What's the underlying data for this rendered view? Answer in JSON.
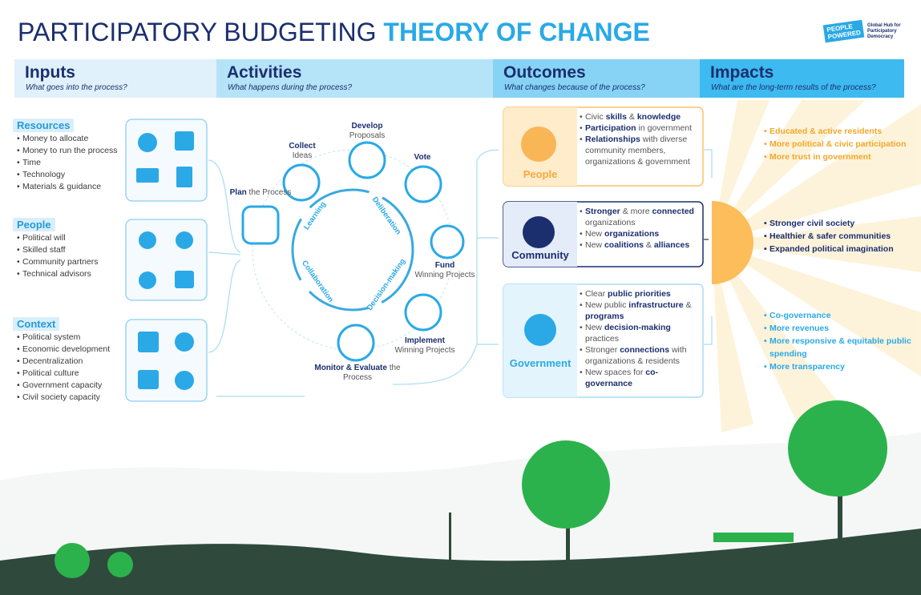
{
  "header": {
    "title": "PARTICIPATORY BUDGETING",
    "title_accent": "THEORY OF CHANGE",
    "logo": [
      "PEOPLE",
      "POWERED"
    ],
    "logo_caption": "Global Hub for Participatory Democracy"
  },
  "columns": [
    {
      "title": "Inputs",
      "question": "What goes into the process?"
    },
    {
      "title": "Activities",
      "question": "What happens during the process?"
    },
    {
      "title": "Outcomes",
      "question": "What changes because of the process?"
    },
    {
      "title": "Impacts",
      "question": "What are the long-term results of the process?"
    }
  ],
  "inputs": [
    {
      "label": "Resources",
      "items": [
        "Money to allocate",
        "Money to run the process",
        "Time",
        "Technology",
        "Materials & guidance"
      ]
    },
    {
      "label": "People",
      "items": [
        "Political will",
        "Skilled staff",
        "Community partners",
        "Technical advisors"
      ]
    },
    {
      "label": "Context",
      "items": [
        "Political system",
        "Economic development",
        "Decentralization",
        "Political culture",
        "Government capacity",
        "Civil society capacity"
      ]
    }
  ],
  "activities": {
    "steps": [
      {
        "bold": "Plan",
        "light": "the Process"
      },
      {
        "bold": "Collect",
        "light": "Ideas"
      },
      {
        "bold": "Develop",
        "light": "Proposals"
      },
      {
        "bold": "Vote"
      },
      {
        "bold": "Fund",
        "light": "Winning Projects"
      },
      {
        "bold": "Implement",
        "light": "Winning Projects"
      },
      {
        "bold": "Monitor & Evaluate",
        "light": "the Process"
      }
    ],
    "cycle": [
      "Learning",
      "Deliberation",
      "Decision-making",
      "Collaboration"
    ]
  },
  "outcomes": [
    {
      "label": "People",
      "bullets": [
        [
          {
            "text": "Civic"
          },
          {
            "text": "skills",
            "bold": true
          },
          {
            "text": "&"
          },
          {
            "text": "knowledge",
            "bold": true
          }
        ],
        [
          {
            "text": "Participation",
            "bold": true
          },
          {
            "text": "in government"
          }
        ],
        [
          {
            "text": "Relationships",
            "bold": true
          },
          {
            "text": "with diverse community members, organizations & government"
          }
        ]
      ]
    },
    {
      "label": "Community",
      "bullets": [
        [
          {
            "text": "Stronger",
            "bold": true
          },
          {
            "text": "& more"
          },
          {
            "text": "connected",
            "bold": true
          },
          {
            "text": "organizations"
          }
        ],
        [
          {
            "text": "New"
          },
          {
            "text": "organizations",
            "bold": true
          }
        ],
        [
          {
            "text": "New"
          },
          {
            "text": "coalitions",
            "bold": true
          },
          {
            "text": "&"
          },
          {
            "text": "alliances",
            "bold": true
          }
        ]
      ]
    },
    {
      "label": "Government",
      "bullets": [
        [
          {
            "text": "Clear"
          },
          {
            "text": "public priorities",
            "bold": true
          }
        ],
        [
          {
            "text": "New public"
          },
          {
            "text": "infrastructure",
            "bold": true
          },
          {
            "text": "&"
          },
          {
            "text": "programs",
            "bold": true
          }
        ],
        [
          {
            "text": "New"
          },
          {
            "text": "decision-making",
            "bold": true
          },
          {
            "text": "practices"
          }
        ],
        [
          {
            "text": "Stronger"
          },
          {
            "text": "connections",
            "bold": true
          },
          {
            "text": "with organizations & residents"
          }
        ],
        [
          {
            "text": "New spaces for"
          },
          {
            "text": "co-governance",
            "bold": true
          }
        ]
      ]
    }
  ],
  "impacts": [
    [
      "Educated & active residents",
      "More political & civic participation",
      "More trust in government"
    ],
    [
      "Stronger civil society",
      "Healthier & safer communities",
      "Expanded political imagination"
    ],
    [
      "Co-governance",
      "More revenues",
      "More responsive & equitable public spending",
      "More transparency"
    ]
  ]
}
